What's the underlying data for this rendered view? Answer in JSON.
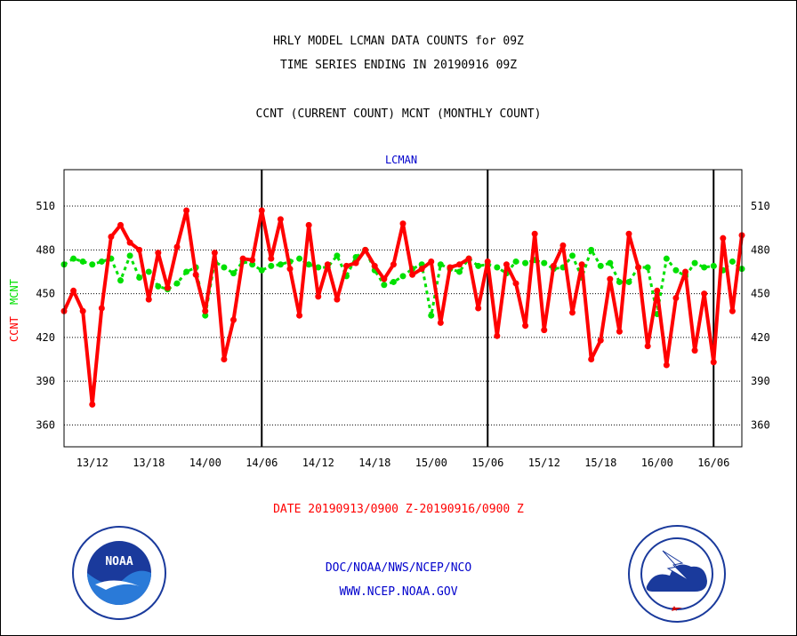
{
  "header": {
    "line1": "HRLY MODEL LCMAN DATA COUNTS for 09Z",
    "line2": "TIME SERIES ENDING IN 20190916 09Z",
    "line3": "CCNT (CURRENT COUNT) MCNT (MONTHLY COUNT)"
  },
  "footer": {
    "date_range": "DATE 20190913/0900 Z-20190916/0900 Z",
    "org": "DOC/NOAA/NWS/NCEP/NCO",
    "url": "WWW.NCEP.NOAA.GOV"
  },
  "logos": {
    "noaa_text": "NOAA",
    "noaa_ring": "NATIONAL OCEANIC AND ATMOSPHERIC ADMINISTRATION · U.S. DEPARTMENT OF COMMERCE",
    "nws_ring": "NATIONAL WEATHER SERVICE"
  },
  "colors": {
    "ccnt": "#ff0000",
    "mcnt": "#00e000",
    "title": "#000000",
    "panel_title": "#0000cc",
    "date": "#ff0000",
    "footer": "#0000cc"
  },
  "chart_data": {
    "type": "line",
    "title": "LCMAN",
    "ylabel_ccnt": "CCNT",
    "ylabel_mcnt": "MCNT",
    "yticks": [
      360,
      390,
      420,
      450,
      480,
      510
    ],
    "ylim": [
      345,
      535
    ],
    "x_unit": "hours from 20190913/0900 Z",
    "xlim": [
      0,
      72
    ],
    "xticks": [
      {
        "x": 3,
        "label": "13/12"
      },
      {
        "x": 9,
        "label": "13/18"
      },
      {
        "x": 15,
        "label": "14/00"
      },
      {
        "x": 21,
        "label": "14/06"
      },
      {
        "x": 27,
        "label": "14/12"
      },
      {
        "x": 33,
        "label": "14/18"
      },
      {
        "x": 39,
        "label": "15/00"
      },
      {
        "x": 45,
        "label": "15/06"
      },
      {
        "x": 51,
        "label": "15/12"
      },
      {
        "x": 57,
        "label": "15/18"
      },
      {
        "x": 63,
        "label": "16/00"
      },
      {
        "x": 69,
        "label": "16/06"
      }
    ],
    "vlines": [
      21,
      45,
      69
    ],
    "series": [
      {
        "name": "CCNT",
        "values": [
          438,
          452,
          438,
          374,
          440,
          489,
          497,
          485,
          480,
          446,
          478,
          454,
          482,
          507,
          463,
          438,
          478,
          405,
          432,
          474,
          473,
          507,
          474,
          501,
          467,
          435,
          497,
          448,
          470,
          446,
          469,
          471,
          480,
          469,
          460,
          470,
          498,
          463,
          467,
          472,
          430,
          468,
          470,
          474,
          440,
          472,
          421,
          470,
          457,
          428,
          491,
          425,
          469,
          483,
          437,
          470,
          405,
          418,
          460,
          424,
          491,
          468,
          414,
          452,
          401,
          447,
          465,
          411,
          450,
          403,
          488,
          438,
          490
        ]
      },
      {
        "name": "MCNT",
        "values": [
          470,
          474,
          472,
          470,
          472,
          474,
          459,
          476,
          461,
          465,
          455,
          453,
          457,
          465,
          468,
          435,
          472,
          468,
          464,
          472,
          470,
          466,
          469,
          470,
          472,
          474,
          470,
          468,
          468,
          476,
          462,
          475,
          480,
          466,
          456,
          458,
          462,
          467,
          470,
          435,
          470,
          467,
          465,
          474,
          469,
          470,
          468,
          464,
          472,
          471,
          473,
          471,
          467,
          468,
          476,
          461,
          480,
          469,
          471,
          458,
          458,
          468,
          468,
          436,
          474,
          466,
          462,
          471,
          468,
          469,
          466,
          472,
          467
        ]
      }
    ]
  }
}
